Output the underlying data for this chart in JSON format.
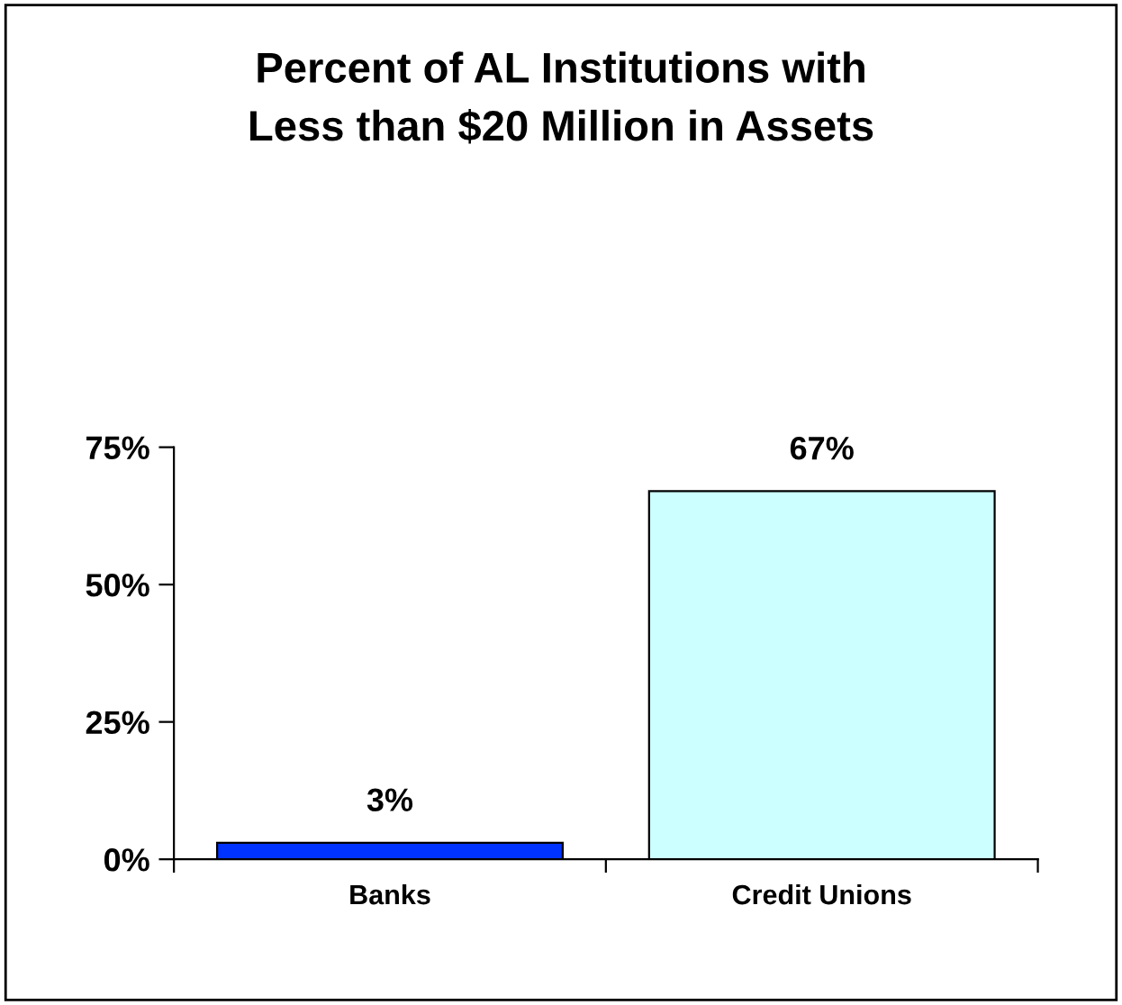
{
  "chart_data": {
    "type": "bar",
    "title": "Percent of AL Institutions with\nLess than $20 Million in Assets",
    "categories": [
      "Banks",
      "Credit Unions"
    ],
    "values": [
      3,
      67
    ],
    "colors": [
      "#0033ff",
      "#ccffff"
    ],
    "value_labels": [
      "3%",
      "67%"
    ],
    "ylim": [
      0,
      75
    ],
    "yticks": [
      {
        "value": 0,
        "label": "0%"
      },
      {
        "value": 25,
        "label": "25%"
      },
      {
        "value": 50,
        "label": "50%"
      },
      {
        "value": 75,
        "label": "75%"
      }
    ],
    "grid": false,
    "legend": false
  }
}
